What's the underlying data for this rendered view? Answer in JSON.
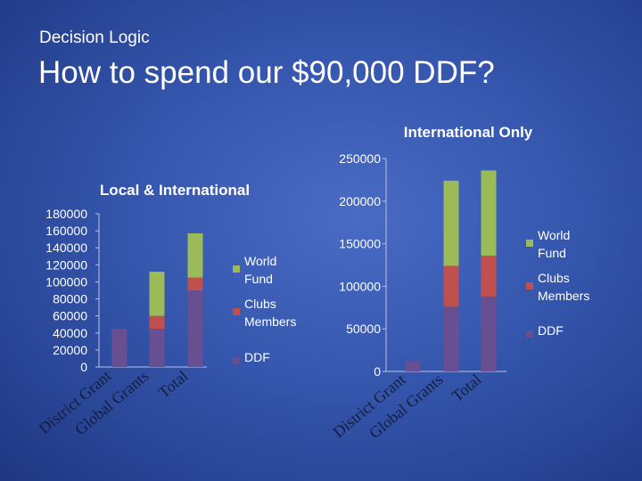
{
  "slide": {
    "subtitle": "Decision Logic",
    "title": "How to spend our $90,000 DDF?"
  },
  "chart_data": [
    {
      "type": "bar",
      "stacked": true,
      "title": "Local & International",
      "categories": [
        "District Grant",
        "Global Grants",
        "Total"
      ],
      "series": [
        {
          "name": "DDF",
          "color": "#674f91",
          "values": [
            45000,
            45000,
            90000
          ]
        },
        {
          "name": "Clubs Members",
          "color": "#c0504d",
          "values": [
            0,
            15000,
            15000
          ]
        },
        {
          "name": "World Fund",
          "color": "#9bbb59",
          "values": [
            0,
            52000,
            52000
          ]
        }
      ],
      "yticks": [
        "180000",
        "160000",
        "140000",
        "120000",
        "100000",
        "80000",
        "60000",
        "40000",
        "20000",
        "0"
      ],
      "ylim": [
        0,
        180000
      ],
      "legend": "right"
    },
    {
      "type": "bar",
      "stacked": true,
      "title": "International Only",
      "categories": [
        "District Grant",
        "Global Grants",
        "Total"
      ],
      "series": [
        {
          "name": "DDF",
          "color": "#674f91",
          "values": [
            12000,
            76000,
            88000
          ]
        },
        {
          "name": "Clubs Members",
          "color": "#c0504d",
          "values": [
            0,
            48000,
            48000
          ]
        },
        {
          "name": "World Fund",
          "color": "#9bbb59",
          "values": [
            0,
            100000,
            100000
          ]
        }
      ],
      "yticks": [
        "250000",
        "200000",
        "150000",
        "100000",
        "50000",
        "0"
      ],
      "ylim": [
        0,
        250000
      ],
      "legend": "right"
    }
  ]
}
